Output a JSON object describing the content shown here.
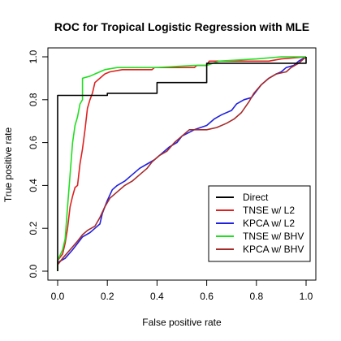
{
  "chart_data": {
    "type": "line",
    "title": "ROC for Tropical Logistic Regression with MLE",
    "xlabel": "False positive rate",
    "ylabel": "True positive rate",
    "xlim": [
      0,
      1
    ],
    "ylim": [
      0,
      1
    ],
    "x_ticks": [
      "0.0",
      "0.2",
      "0.4",
      "0.6",
      "0.8",
      "1.0"
    ],
    "y_ticks": [
      "0.0",
      "0.2",
      "0.4",
      "0.6",
      "0.8",
      "1.0"
    ],
    "grid": false,
    "legend_position": "bottom-right",
    "series": [
      {
        "name": "Direct",
        "color": "#000000",
        "points": [
          [
            0,
            0
          ],
          [
            0,
            0.82
          ],
          [
            0.1,
            0.82
          ],
          [
            0.1,
            0.82
          ],
          [
            0.2,
            0.82
          ],
          [
            0.2,
            0.83
          ],
          [
            0.4,
            0.83
          ],
          [
            0.4,
            0.88
          ],
          [
            0.6,
            0.88
          ],
          [
            0.6,
            0.97
          ],
          [
            1,
            0.97
          ],
          [
            1,
            1
          ]
        ]
      },
      {
        "name": "TNSE w/ L2",
        "color": "#DF2020",
        "points": [
          [
            0,
            0
          ],
          [
            0,
            0.05
          ],
          [
            0.02,
            0.08
          ],
          [
            0.03,
            0.13
          ],
          [
            0.04,
            0.2
          ],
          [
            0.05,
            0.3
          ],
          [
            0.06,
            0.35
          ],
          [
            0.07,
            0.39
          ],
          [
            0.08,
            0.4
          ],
          [
            0.09,
            0.5
          ],
          [
            0.1,
            0.57
          ],
          [
            0.11,
            0.66
          ],
          [
            0.12,
            0.76
          ],
          [
            0.13,
            0.8
          ],
          [
            0.14,
            0.83
          ],
          [
            0.15,
            0.88
          ],
          [
            0.17,
            0.9
          ],
          [
            0.19,
            0.92
          ],
          [
            0.21,
            0.93
          ],
          [
            0.26,
            0.94
          ],
          [
            0.38,
            0.94
          ],
          [
            0.39,
            0.95
          ],
          [
            0.55,
            0.95
          ],
          [
            0.56,
            0.96
          ],
          [
            0.6,
            0.96
          ],
          [
            0.61,
            0.98
          ],
          [
            0.8,
            0.98
          ],
          [
            0.85,
            0.98
          ],
          [
            0.9,
            0.99
          ],
          [
            1,
            1
          ]
        ]
      },
      {
        "name": "KPCA w/ L2",
        "color": "#2020DF",
        "points": [
          [
            0,
            0
          ],
          [
            0,
            0.04
          ],
          [
            0.03,
            0.06
          ],
          [
            0.06,
            0.1
          ],
          [
            0.08,
            0.13
          ],
          [
            0.1,
            0.16
          ],
          [
            0.13,
            0.18
          ],
          [
            0.15,
            0.2
          ],
          [
            0.17,
            0.22
          ],
          [
            0.18,
            0.27
          ],
          [
            0.2,
            0.33
          ],
          [
            0.22,
            0.38
          ],
          [
            0.24,
            0.4
          ],
          [
            0.27,
            0.42
          ],
          [
            0.3,
            0.45
          ],
          [
            0.33,
            0.48
          ],
          [
            0.36,
            0.5
          ],
          [
            0.39,
            0.52
          ],
          [
            0.42,
            0.55
          ],
          [
            0.45,
            0.58
          ],
          [
            0.48,
            0.6
          ],
          [
            0.5,
            0.63
          ],
          [
            0.55,
            0.66
          ],
          [
            0.6,
            0.68
          ],
          [
            0.63,
            0.71
          ],
          [
            0.66,
            0.73
          ],
          [
            0.7,
            0.75
          ],
          [
            0.72,
            0.78
          ],
          [
            0.75,
            0.8
          ],
          [
            0.78,
            0.81
          ],
          [
            0.8,
            0.84
          ],
          [
            0.82,
            0.87
          ],
          [
            0.85,
            0.9
          ],
          [
            0.88,
            0.92
          ],
          [
            0.9,
            0.93
          ],
          [
            0.92,
            0.95
          ],
          [
            0.95,
            0.96
          ],
          [
            0.97,
            0.98
          ],
          [
            1,
            1
          ]
        ]
      },
      {
        "name": "TNSE w/ BHV",
        "color": "#20DF20",
        "points": [
          [
            0,
            0
          ],
          [
            0,
            0.05
          ],
          [
            0.02,
            0.1
          ],
          [
            0.03,
            0.15
          ],
          [
            0.04,
            0.3
          ],
          [
            0.05,
            0.45
          ],
          [
            0.06,
            0.6
          ],
          [
            0.07,
            0.68
          ],
          [
            0.08,
            0.72
          ],
          [
            0.09,
            0.78
          ],
          [
            0.1,
            0.8
          ],
          [
            0.1,
            0.9
          ],
          [
            0.13,
            0.91
          ],
          [
            0.15,
            0.92
          ],
          [
            0.19,
            0.94
          ],
          [
            0.24,
            0.95
          ],
          [
            0.4,
            0.95
          ],
          [
            0.55,
            0.96
          ],
          [
            0.6,
            0.96
          ],
          [
            0.65,
            0.98
          ],
          [
            0.8,
            0.99
          ],
          [
            0.9,
            1
          ],
          [
            1,
            1
          ]
        ]
      },
      {
        "name": "KPCA w/ BHV",
        "color": "#A52A2A",
        "points": [
          [
            0,
            0
          ],
          [
            0,
            0.03
          ],
          [
            0.02,
            0.06
          ],
          [
            0.05,
            0.1
          ],
          [
            0.08,
            0.14
          ],
          [
            0.1,
            0.17
          ],
          [
            0.12,
            0.19
          ],
          [
            0.15,
            0.21
          ],
          [
            0.17,
            0.25
          ],
          [
            0.19,
            0.3
          ],
          [
            0.21,
            0.34
          ],
          [
            0.24,
            0.37
          ],
          [
            0.27,
            0.4
          ],
          [
            0.3,
            0.42
          ],
          [
            0.33,
            0.45
          ],
          [
            0.36,
            0.48
          ],
          [
            0.38,
            0.51
          ],
          [
            0.41,
            0.54
          ],
          [
            0.44,
            0.56
          ],
          [
            0.47,
            0.6
          ],
          [
            0.5,
            0.63
          ],
          [
            0.53,
            0.66
          ],
          [
            0.56,
            0.66
          ],
          [
            0.6,
            0.66
          ],
          [
            0.64,
            0.67
          ],
          [
            0.68,
            0.69
          ],
          [
            0.71,
            0.71
          ],
          [
            0.74,
            0.74
          ],
          [
            0.77,
            0.79
          ],
          [
            0.79,
            0.83
          ],
          [
            0.82,
            0.87
          ],
          [
            0.85,
            0.9
          ],
          [
            0.88,
            0.92
          ],
          [
            0.92,
            0.93
          ],
          [
            0.94,
            0.95
          ],
          [
            0.97,
            0.97
          ],
          [
            1,
            1
          ]
        ]
      }
    ]
  }
}
